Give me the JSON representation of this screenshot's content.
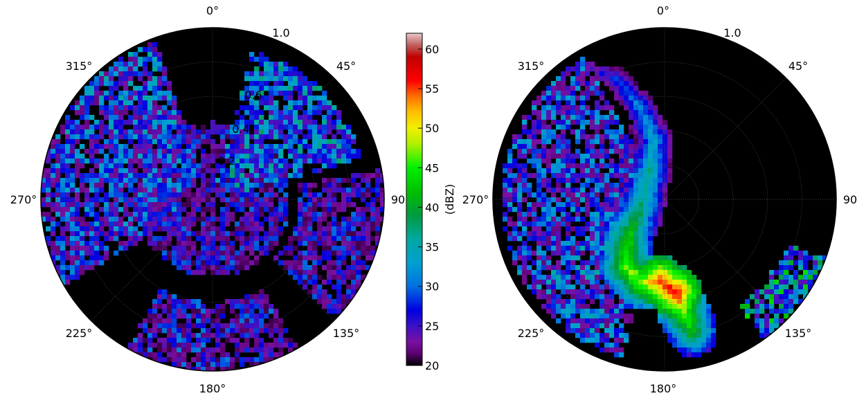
{
  "figure": {
    "colorbar": {
      "label": "(dBZ)",
      "vmin": 20,
      "vmax": 62,
      "ticks": [
        "20",
        "25",
        "30",
        "35",
        "40",
        "45",
        "50",
        "55",
        "60"
      ],
      "colormap_name": "radar-reflectivity",
      "colormap_stops": [
        {
          "v": 20,
          "c": "#000000"
        },
        {
          "v": 21.5,
          "c": "#5a0070"
        },
        {
          "v": 23,
          "c": "#7a10a0"
        },
        {
          "v": 25,
          "c": "#3a10c8"
        },
        {
          "v": 27,
          "c": "#0000e0"
        },
        {
          "v": 30,
          "c": "#0070e0"
        },
        {
          "v": 33,
          "c": "#00a0d0"
        },
        {
          "v": 36,
          "c": "#00a8a0"
        },
        {
          "v": 39,
          "c": "#009a40"
        },
        {
          "v": 42,
          "c": "#00c000"
        },
        {
          "v": 45,
          "c": "#00f000"
        },
        {
          "v": 48,
          "c": "#b0f000"
        },
        {
          "v": 50,
          "c": "#f0f000"
        },
        {
          "v": 52,
          "c": "#ffc000"
        },
        {
          "v": 54,
          "c": "#ff7000"
        },
        {
          "v": 56,
          "c": "#ff0000"
        },
        {
          "v": 59,
          "c": "#c00000"
        },
        {
          "v": 60.5,
          "c": "#c06060"
        },
        {
          "v": 62,
          "c": "#e8c8c8"
        }
      ]
    }
  },
  "chart_data": [
    {
      "type": "heatmap",
      "projection": "polar",
      "theta_zero": "N",
      "theta_direction": "clockwise",
      "angle_labels": [
        "0°",
        "45°",
        "90",
        "135°",
        "180°",
        "225°",
        "270°",
        "315°"
      ],
      "radial_labels": [
        "1.0",
        "0.6",
        "0.4",
        "0.2"
      ],
      "rmax": 1.0,
      "units": "dBZ",
      "background": "#000000",
      "echo_regions": [
        {
          "name": "northwest-band",
          "theta": [
            285,
            340
          ],
          "r": [
            0.15,
            0.98
          ],
          "dbz": [
            22,
            36
          ]
        },
        {
          "name": "northeast-mass",
          "theta": [
            15,
            75
          ],
          "r": [
            0.1,
            0.9
          ],
          "dbz": [
            24,
            38
          ]
        },
        {
          "name": "west-broad",
          "theta": [
            240,
            290
          ],
          "r": [
            0.2,
            1.0
          ],
          "dbz": [
            22,
            34
          ]
        },
        {
          "name": "south-patchy",
          "theta": [
            150,
            210
          ],
          "r": [
            0.6,
            1.0
          ],
          "dbz": [
            21,
            31
          ]
        },
        {
          "name": "east-ring",
          "theta": [
            80,
            135
          ],
          "r": [
            0.5,
            1.0
          ],
          "dbz": [
            21,
            30
          ]
        },
        {
          "name": "center-scatter",
          "theta": [
            0,
            360
          ],
          "r": [
            0.0,
            0.45
          ],
          "dbz": [
            21,
            30
          ]
        }
      ],
      "blocked_sector": {
        "theta": [
          135,
          142
        ],
        "r": [
          0.45,
          1.0
        ]
      }
    },
    {
      "type": "heatmap",
      "projection": "polar",
      "theta_zero": "N",
      "theta_direction": "clockwise",
      "angle_labels": [
        "0°",
        "45°",
        "90",
        "135°",
        "180°",
        "225°",
        "270°",
        "315°"
      ],
      "radial_labels": [
        "1.0"
      ],
      "rmax": 1.0,
      "units": "dBZ",
      "background": "#000000",
      "squall_line": [
        {
          "theta": 330,
          "r": 0.9,
          "dbz": 26
        },
        {
          "theta": 338,
          "r": 0.75,
          "dbz": 30
        },
        {
          "theta": 345,
          "r": 0.55,
          "dbz": 33
        },
        {
          "theta": 350,
          "r": 0.35,
          "dbz": 35
        },
        {
          "theta": 330,
          "r": 0.18,
          "dbz": 38
        },
        {
          "theta": 250,
          "r": 0.15,
          "dbz": 40
        },
        {
          "theta": 225,
          "r": 0.3,
          "dbz": 45
        },
        {
          "theta": 210,
          "r": 0.45,
          "dbz": 48
        },
        {
          "theta": 195,
          "r": 0.5,
          "dbz": 50
        },
        {
          "theta": 183,
          "r": 0.48,
          "dbz": 57
        },
        {
          "theta": 173,
          "r": 0.55,
          "dbz": 58
        },
        {
          "theta": 170,
          "r": 0.68,
          "dbz": 48
        },
        {
          "theta": 168,
          "r": 0.78,
          "dbz": 45
        }
      ],
      "echo_regions": [
        {
          "name": "west-stratiform",
          "theta": [
            240,
            330
          ],
          "r": [
            0.05,
            0.95
          ],
          "dbz": [
            22,
            34
          ]
        },
        {
          "name": "southwest-stratiform",
          "theta": [
            195,
            240
          ],
          "r": [
            0.3,
            0.95
          ],
          "dbz": [
            22,
            36
          ]
        },
        {
          "name": "southeast-cell",
          "theta": [
            110,
            145
          ],
          "r": [
            0.75,
            1.0
          ],
          "dbz": [
            24,
            44
          ]
        }
      ]
    }
  ]
}
